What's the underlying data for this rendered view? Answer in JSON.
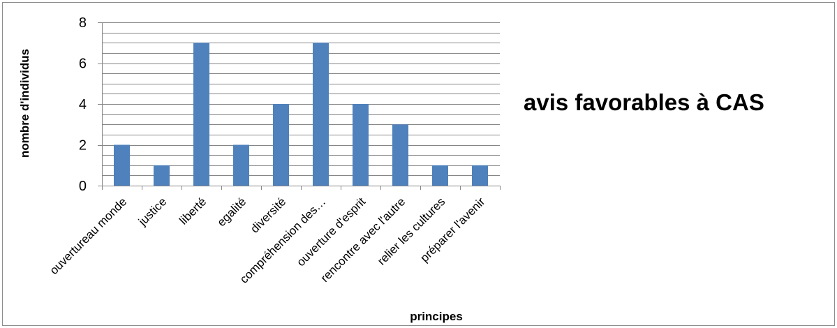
{
  "chart_data": {
    "type": "bar",
    "title": "avis favorables à CAS",
    "xlabel": "principes",
    "ylabel": "nombre d'individus",
    "categories": [
      "ouvertureau monde",
      "justice",
      "liberté",
      "egalité",
      "diversité",
      "compréhension des…",
      "ouverture d'esprit",
      "rencontre avec l'autre",
      "relier les cultures",
      "préparer l'avenir"
    ],
    "values": [
      2,
      1,
      7,
      2,
      4,
      7,
      4,
      3,
      1,
      1
    ],
    "ylim": [
      0,
      8
    ],
    "yticks": [
      "0",
      "2",
      "4",
      "6",
      "8"
    ],
    "grid": true,
    "minor_grid": true,
    "legend": "none",
    "bar_color": "#4f81bd"
  }
}
